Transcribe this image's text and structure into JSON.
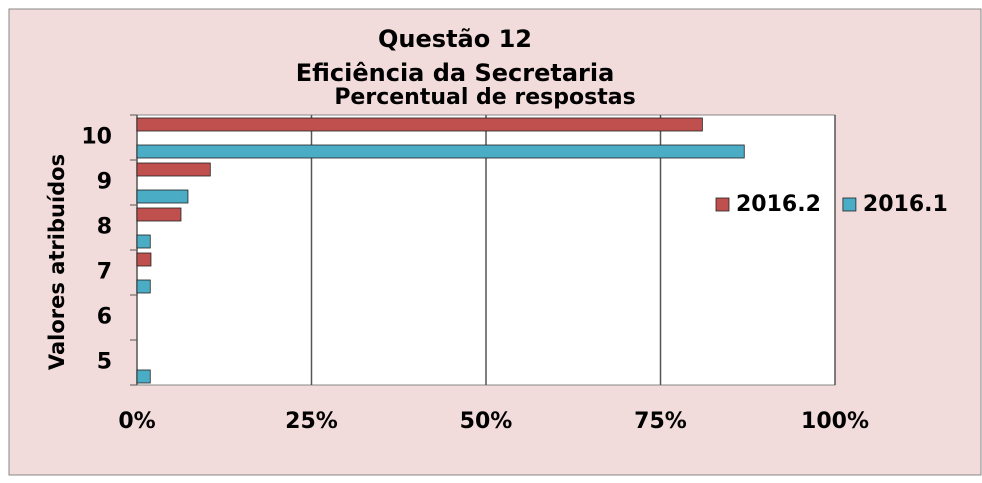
{
  "chart_data": {
    "type": "bar",
    "orientation": "horizontal",
    "title": "Questão 12",
    "subtitle": "Eficiência da Secretaria",
    "subtitle2": "Percentual de respostas",
    "y_label": "Valores atribuídos",
    "categories": [
      "10",
      "9",
      "8",
      "7",
      "6",
      "5"
    ],
    "series": [
      {
        "name": "2016.2",
        "color": "#c0504d",
        "values": [
          81,
          10.5,
          6.3,
          2,
          0,
          0
        ]
      },
      {
        "name": "2016.1",
        "color": "#4bacc6",
        "values": [
          87,
          7.3,
          1.9,
          1.9,
          0,
          1.9
        ]
      }
    ],
    "xlim": [
      0,
      100
    ],
    "xticks": [
      {
        "value": 0,
        "label": "0%"
      },
      {
        "value": 25,
        "label": "25%"
      },
      {
        "value": 50,
        "label": "50%"
      },
      {
        "value": 75,
        "label": "75%"
      },
      {
        "value": 100,
        "label": "100%"
      }
    ],
    "grid": true,
    "legend": "right"
  }
}
